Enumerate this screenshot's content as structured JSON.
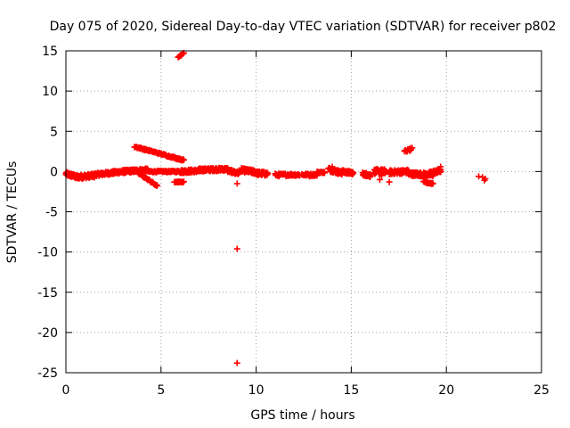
{
  "chart_data": {
    "type": "scatter",
    "title": "Day 075 of 2020, Sidereal Day-to-day VTEC variation (SDTVAR) for receiver p802",
    "xlabel": "GPS time / hours",
    "ylabel": "SDTVAR / TECUs",
    "xlim": [
      0,
      25
    ],
    "ylim": [
      -25,
      15
    ],
    "xticks": [
      0,
      5,
      10,
      15,
      20,
      25
    ],
    "yticks": [
      -25,
      -20,
      -15,
      -10,
      -5,
      0,
      5,
      10,
      15
    ],
    "xtick_labels": [
      "0",
      "5",
      "10",
      "15",
      "20",
      "25"
    ],
    "ytick_labels": [
      "-25",
      "-20",
      "-15",
      "-10",
      "-5",
      "0",
      "5",
      "10",
      "15"
    ],
    "grid": true,
    "marker": "+",
    "color": "#ff0000",
    "series": [
      {
        "name": "baseline band",
        "segments": [
          {
            "x0": 0.0,
            "x1": 0.5,
            "y0": -0.3,
            "y1": -0.6,
            "spread": 0.5
          },
          {
            "x0": 0.5,
            "x1": 1.5,
            "y0": -0.7,
            "y1": -0.5,
            "spread": 0.5
          },
          {
            "x0": 1.5,
            "x1": 3.0,
            "y0": -0.4,
            "y1": 0.0,
            "spread": 0.4
          },
          {
            "x0": 3.0,
            "x1": 4.3,
            "y0": 0.0,
            "y1": 0.2,
            "spread": 0.4
          },
          {
            "x0": 4.3,
            "x1": 6.2,
            "y0": 0.0,
            "y1": 0.0,
            "spread": 0.2
          },
          {
            "x0": 6.0,
            "x1": 7.0,
            "y0": 0.0,
            "y1": 0.1,
            "spread": 0.4
          },
          {
            "x0": 7.0,
            "x1": 8.5,
            "y0": 0.2,
            "y1": 0.3,
            "spread": 0.4
          },
          {
            "x0": 8.5,
            "x1": 9.1,
            "y0": 0.1,
            "y1": -0.2,
            "spread": 0.4
          },
          {
            "x0": 9.2,
            "x1": 10.0,
            "y0": 0.2,
            "y1": -0.1,
            "spread": 0.5
          },
          {
            "x0": 10.0,
            "x1": 10.6,
            "y0": -0.2,
            "y1": -0.3,
            "spread": 0.5
          },
          {
            "x0": 11.0,
            "x1": 12.3,
            "y0": -0.4,
            "y1": -0.4,
            "spread": 0.3
          },
          {
            "x0": 12.4,
            "x1": 13.2,
            "y0": -0.4,
            "y1": -0.4,
            "spread": 0.3
          },
          {
            "x0": 13.2,
            "x1": 13.6,
            "y0": -0.1,
            "y1": -0.1,
            "spread": 0.2
          },
          {
            "x0": 13.8,
            "x1": 14.5,
            "y0": 0.3,
            "y1": -0.2,
            "spread": 0.5
          },
          {
            "x0": 14.5,
            "x1": 15.1,
            "y0": 0.0,
            "y1": -0.2,
            "spread": 0.4
          },
          {
            "x0": 15.6,
            "x1": 16.0,
            "y0": -0.3,
            "y1": -0.5,
            "spread": 0.4
          },
          {
            "x0": 16.2,
            "x1": 16.8,
            "y0": 0.0,
            "y1": 0.0,
            "spread": 0.6
          },
          {
            "x0": 17.0,
            "x1": 18.0,
            "y0": -0.1,
            "y1": 0.0,
            "spread": 0.5
          },
          {
            "x0": 18.0,
            "x1": 19.3,
            "y0": -0.3,
            "y1": -0.4,
            "spread": 0.5
          },
          {
            "x0": 19.1,
            "x1": 19.7,
            "y0": -0.2,
            "y1": 0.1,
            "spread": 0.4
          }
        ],
        "points": [
          [
            8.3,
            0.1
          ],
          [
            8.9,
            -0.3
          ],
          [
            11.2,
            -0.6
          ],
          [
            12.8,
            -0.6
          ],
          [
            14.0,
            0.6
          ],
          [
            15.8,
            -0.2
          ],
          [
            16.6,
            -0.5
          ],
          [
            17.5,
            -0.1
          ]
        ]
      },
      {
        "name": "descending arc 4-5h",
        "segments": [
          {
            "x0": 3.6,
            "x1": 4.8,
            "y0": 0.2,
            "y1": -1.8,
            "spread": 0.2
          }
        ],
        "points": []
      },
      {
        "name": "upper arc 3.5-6.2h",
        "segments": [
          {
            "x0": 3.6,
            "x1": 6.2,
            "y0": 3.1,
            "y1": 1.4,
            "spread": 0.2
          }
        ],
        "points": []
      },
      {
        "name": "upper arc 5.9-6.2h",
        "segments": [
          {
            "x0": 5.9,
            "x1": 6.2,
            "y0": 14.2,
            "y1": 14.8,
            "spread": 0.2
          }
        ],
        "points": []
      },
      {
        "name": "low band 5.7-6.2h",
        "segments": [
          {
            "x0": 5.7,
            "x1": 6.2,
            "y0": -1.3,
            "y1": -1.3,
            "spread": 0.1
          }
        ],
        "points": []
      },
      {
        "name": "arc 18h",
        "segments": [
          {
            "x0": 17.8,
            "x1": 18.2,
            "y0": 2.5,
            "y1": 2.8,
            "spread": 0.3
          }
        ],
        "points": []
      },
      {
        "name": "low band 19h",
        "segments": [
          {
            "x0": 18.8,
            "x1": 19.3,
            "y0": -1.3,
            "y1": -1.5,
            "spread": 0.2
          }
        ],
        "points": []
      },
      {
        "name": "late points 21.5-22h",
        "segments": [],
        "points": [
          [
            21.7,
            -0.6
          ],
          [
            21.9,
            -0.7
          ],
          [
            22.0,
            -1.1
          ],
          [
            22.05,
            -0.9
          ]
        ]
      },
      {
        "name": "outliers",
        "segments": [],
        "points": [
          [
            9.0,
            -1.5
          ],
          [
            9.0,
            -9.6
          ],
          [
            9.0,
            -23.8
          ],
          [
            19.7,
            0.6
          ],
          [
            16.5,
            -1.0
          ],
          [
            17.0,
            -1.3
          ]
        ]
      }
    ]
  }
}
